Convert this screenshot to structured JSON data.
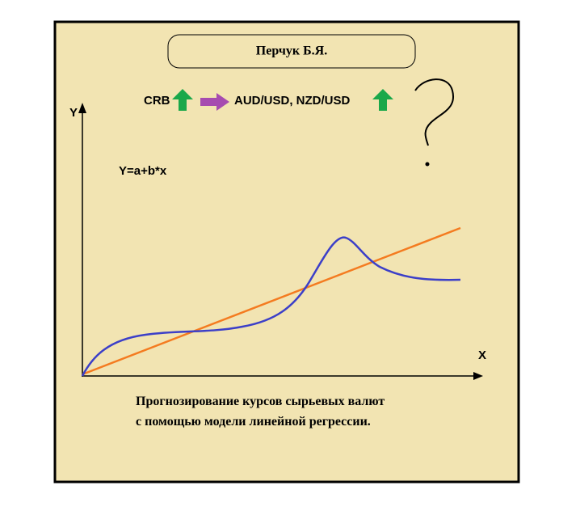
{
  "header": {
    "title": "Перчук Б.Я."
  },
  "flow": {
    "source": "CRB",
    "target": "AUD/USD, NZD/USD"
  },
  "axes": {
    "y_label": "Y",
    "x_label": "X"
  },
  "formula": "Y=a+b*x",
  "caption": {
    "lines": [
      "Прогнозирование курсов сырьевых валют",
      "с помощью модели линейной регрессии."
    ]
  }
}
